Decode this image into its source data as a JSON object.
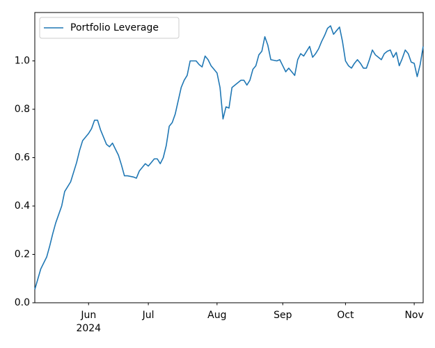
{
  "chart_data": {
    "type": "line",
    "x": [
      0,
      2,
      4,
      5,
      6,
      7,
      9,
      10,
      12,
      14,
      15,
      16,
      18,
      19,
      20,
      21,
      22,
      24,
      25,
      26,
      27,
      28,
      29,
      30,
      31,
      33,
      34,
      35,
      36,
      37,
      38,
      39,
      40,
      41,
      42,
      43,
      44,
      45,
      46,
      47,
      49,
      50,
      51,
      52,
      54,
      55,
      56,
      57,
      58,
      59,
      60,
      61,
      62,
      63,
      64,
      65,
      66,
      67,
      68,
      69,
      70,
      71,
      72,
      73,
      74,
      75,
      76,
      77,
      78,
      79,
      81,
      82,
      83,
      84,
      85,
      86,
      87,
      88,
      89,
      90,
      91,
      92,
      93,
      94,
      95,
      96,
      97,
      98,
      99,
      100,
      101,
      102,
      103,
      104,
      105,
      106,
      107,
      108,
      109,
      110,
      111,
      112,
      113,
      114,
      115,
      116,
      117,
      118,
      119,
      120,
      121,
      122,
      123,
      124,
      125,
      126,
      127,
      128,
      129,
      130
    ],
    "series": [
      {
        "name": "Portfolio Leverage",
        "color": "#1f77b4",
        "values": [
          0.055,
          0.14,
          0.19,
          0.235,
          0.285,
          0.33,
          0.4,
          0.46,
          0.5,
          0.58,
          0.63,
          0.67,
          0.7,
          0.72,
          0.755,
          0.755,
          0.715,
          0.655,
          0.645,
          0.66,
          0.635,
          0.61,
          0.57,
          0.525,
          0.525,
          0.52,
          0.515,
          0.545,
          0.56,
          0.575,
          0.565,
          0.58,
          0.595,
          0.595,
          0.575,
          0.6,
          0.65,
          0.73,
          0.745,
          0.78,
          0.89,
          0.92,
          0.94,
          1.0,
          1.0,
          0.985,
          0.975,
          1.02,
          1.005,
          0.98,
          0.965,
          0.95,
          0.89,
          0.76,
          0.81,
          0.805,
          0.89,
          0.9,
          0.91,
          0.92,
          0.92,
          0.9,
          0.92,
          0.965,
          0.98,
          1.025,
          1.04,
          1.1,
          1.065,
          1.005,
          1.0,
          1.005,
          0.98,
          0.955,
          0.97,
          0.955,
          0.94,
          1.005,
          1.03,
          1.02,
          1.04,
          1.06,
          1.015,
          1.03,
          1.05,
          1.08,
          1.105,
          1.135,
          1.145,
          1.11,
          1.125,
          1.14,
          1.08,
          1.0,
          0.98,
          0.97,
          0.99,
          1.005,
          0.99,
          0.97,
          0.97,
          1.005,
          1.045,
          1.025,
          1.015,
          1.005,
          1.03,
          1.04,
          1.045,
          1.015,
          1.035,
          0.98,
          1.01,
          1.045,
          1.03,
          0.995,
          0.99,
          0.935,
          0.985,
          1.06
        ]
      }
    ],
    "xlim": [
      0,
      130
    ],
    "xticks": [
      {
        "value": 18,
        "label": "Jun"
      },
      {
        "value": 38,
        "label": "Jul"
      },
      {
        "value": 61,
        "label": "Aug"
      },
      {
        "value": 83,
        "label": "Sep"
      },
      {
        "value": 104,
        "label": "Oct"
      },
      {
        "value": 127,
        "label": "Nov"
      }
    ],
    "x_offset_label": "2024",
    "ylim": [
      0.0,
      1.2
    ],
    "yticks": [
      {
        "value": 0,
        "label": "0.0"
      },
      {
        "value": 0.2,
        "label": "0.2"
      },
      {
        "value": 0.4,
        "label": "0.4"
      },
      {
        "value": 0.6,
        "label": "0.6"
      },
      {
        "value": 0.8,
        "label": "0.8"
      },
      {
        "value": 1,
        "label": "1.0"
      }
    ],
    "grid": false,
    "legend": "upper left"
  }
}
